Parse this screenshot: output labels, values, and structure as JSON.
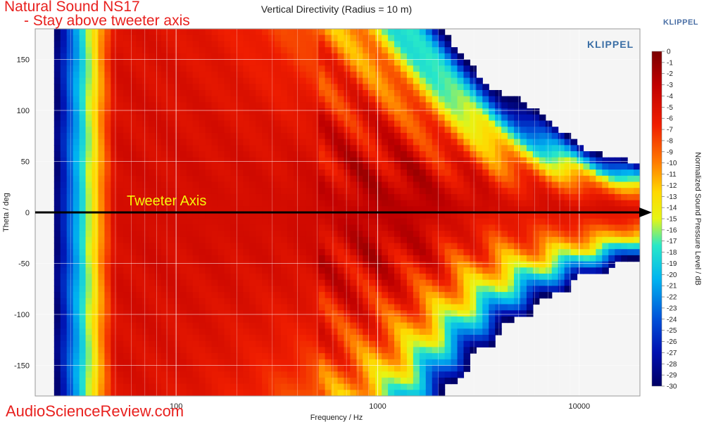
{
  "overlay": {
    "line1": "Natural Sound NS17",
    "line2": "- Stay above tweeter axis",
    "arrow_label": "Tweeter Axis",
    "watermark": "AudioScienceReview.com",
    "brand": "KLIPPEL",
    "logo_text": "KLIPPEL"
  },
  "colors": {
    "annotation": "#e8201e",
    "arrow_label": "#f5f50a",
    "arrow": "#000000"
  },
  "chart_data": {
    "type": "heatmap",
    "title": "Vertical Directivity (Radius = 10 m)",
    "xlabel": "Frequency / Hz",
    "ylabel": "Theta / deg",
    "colorbar_label": "Normalized Sound Pressure Level / dB",
    "x_scale": "log",
    "xlim": [
      20,
      20000
    ],
    "ylim": [
      -180,
      180
    ],
    "x_ticks": [
      100,
      1000,
      10000
    ],
    "y_ticks": [
      150,
      100,
      50,
      0,
      -50,
      -100,
      -150
    ],
    "color_range": [
      -30,
      0
    ],
    "colorbar_ticks": [
      0,
      -1,
      -2,
      -3,
      -4,
      -5,
      -6,
      -7,
      -8,
      -9,
      -10,
      -11,
      -12,
      -13,
      -14,
      -15,
      -16,
      -17,
      -18,
      -19,
      -20,
      -21,
      -22,
      -23,
      -24,
      -25,
      -26,
      -27,
      -28,
      -29,
      -30
    ],
    "grid": true,
    "annotation_axis_theta": 0
  }
}
